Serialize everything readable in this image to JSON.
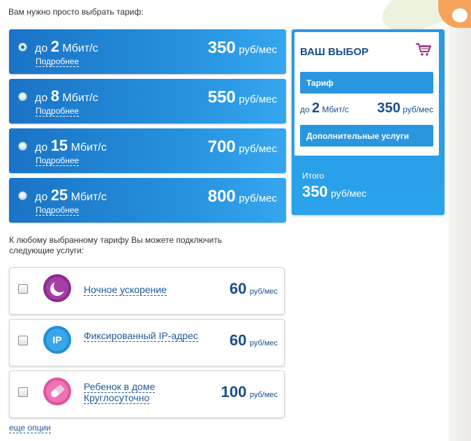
{
  "intro": "Вам нужно просто выбрать тариф:",
  "tariffs": [
    {
      "prefix": "до",
      "speed": "2",
      "unit": "Мбит/с",
      "details": "Подробнее",
      "price": "350",
      "price_unit": "руб/мес",
      "selected": true
    },
    {
      "prefix": "до",
      "speed": "8",
      "unit": "Мбит/с",
      "details": "Подробнее",
      "price": "550",
      "price_unit": "руб/мес",
      "selected": false
    },
    {
      "prefix": "до",
      "speed": "15",
      "unit": "Мбит/с",
      "details": "Подробнее",
      "price": "700",
      "price_unit": "руб/мес",
      "selected": false
    },
    {
      "prefix": "до",
      "speed": "25",
      "unit": "Мбит/с",
      "details": "Подробнее",
      "price": "800",
      "price_unit": "руб/мес",
      "selected": false
    }
  ],
  "choice": {
    "title": "ВАШ ВЫБОР",
    "tariff_label": "Тариф",
    "prefix": "до",
    "speed": "2",
    "unit": "Мбит/с",
    "price": "350",
    "price_unit": "руб/мес",
    "extra_label": "Дополнительные услуги",
    "total_label": "Итого",
    "total": "350",
    "total_unit": "руб/мес"
  },
  "note": "К любому выбранному тарифу Вы можете подключить следующие услуги:",
  "services": [
    {
      "name": "Ночное ускорение",
      "price": "60",
      "price_unit": "руб/мес",
      "icon": "moon-icon",
      "color": "#8e2a8e"
    },
    {
      "name": "Фиксированный IP-адрес",
      "price": "60",
      "price_unit": "руб/мес",
      "icon": "ip-icon",
      "color": "#1f8fd6"
    },
    {
      "name": "Ребенок в доме Круглосуточно",
      "price": "100",
      "price_unit": "руб/мес",
      "icon": "pill-icon",
      "color": "#e0559e"
    }
  ],
  "more_options": "еще опции"
}
